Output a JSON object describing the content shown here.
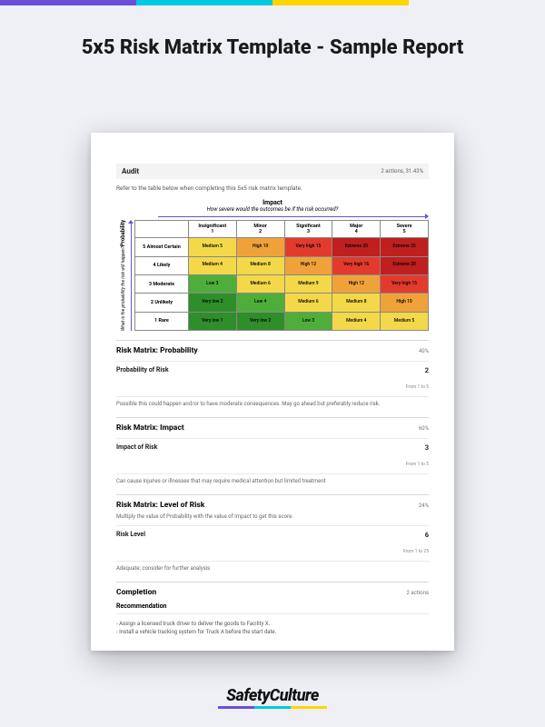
{
  "topbar_colors": [
    "#6b4fd8",
    "#00c9e0",
    "#ffd500",
    "#ffffff00"
  ],
  "title": "5x5 Risk Matrix Template - Sample Report",
  "audit": {
    "label": "Audit",
    "meta": "2 actions, 31.43%"
  },
  "instruction": "Refer to the table below when completing this 5x5 risk matrix template.",
  "impact_header": {
    "title": "Impact",
    "subtitle": "How severe would the outcomes be if the risk occurred?"
  },
  "probability_header": {
    "title": "Probability",
    "subtitle": "What is the probability the risk will happen?"
  },
  "matrix": {
    "columns": [
      {
        "label": "Insignificant",
        "n": "1"
      },
      {
        "label": "Minor",
        "n": "2"
      },
      {
        "label": "Significant",
        "n": "3"
      },
      {
        "label": "Major",
        "n": "4"
      },
      {
        "label": "Severe",
        "n": "5"
      }
    ],
    "rows": [
      {
        "label": "5 Almost Certain",
        "cells": [
          "Medium 5",
          "High 10",
          "Very high 15",
          "Extreme 20",
          "Extreme 25"
        ]
      },
      {
        "label": "4 Likely",
        "cells": [
          "Medium 4",
          "Medium 8",
          "High 12",
          "Very high 16",
          "Extreme 20"
        ]
      },
      {
        "label": "3 Moderate",
        "cells": [
          "Low 3",
          "Medium 6",
          "Medium 9",
          "High 12",
          "Very high 15"
        ]
      },
      {
        "label": "2 Unlikely",
        "cells": [
          "Very low 2",
          "Low 4",
          "Medium 6",
          "Medium 8",
          "High 10"
        ]
      },
      {
        "label": "1 Rare",
        "cells": [
          "Very low 1",
          "Very low 2",
          "Low 3",
          "Medium 4",
          "Medium 5"
        ]
      }
    ],
    "cell_colors": [
      [
        "#f3d84a",
        "#f0a23a",
        "#e23b2e",
        "#c01f1f",
        "#c01f1f"
      ],
      [
        "#f3d84a",
        "#f3d84a",
        "#f0a23a",
        "#e23b2e",
        "#c01f1f"
      ],
      [
        "#4fae3a",
        "#f3d84a",
        "#f3d84a",
        "#f0a23a",
        "#e23b2e"
      ],
      [
        "#2e8f2a",
        "#4fae3a",
        "#f3d84a",
        "#f3d84a",
        "#f0a23a"
      ],
      [
        "#2e8f2a",
        "#2e8f2a",
        "#4fae3a",
        "#f3d84a",
        "#f3d84a"
      ]
    ]
  },
  "sections": {
    "probability": {
      "heading": "Risk Matrix: Probability",
      "meta": "40%",
      "field_label": "Probability of Risk",
      "value": "2",
      "range": "From 1 to 5",
      "desc": "Possible this could happen and/or to have moderate consequences. May go ahead but preferably reduce risk."
    },
    "impact": {
      "heading": "Risk Matrix: Impact",
      "meta": "60%",
      "field_label": "Impact of Risk",
      "value": "3",
      "range": "From 1 to 5",
      "desc": "Can cause injuries or illnesses that may require medical attention but limited treatment"
    },
    "level": {
      "heading": "Risk Matrix: Level of Risk",
      "meta": "24%",
      "note": "Multiply the value of Probability with the value of Impact to get this score.",
      "field_label": "Risk Level",
      "value": "6",
      "range": "From 1 to 25",
      "desc": "Adequate; consider for further analysis"
    },
    "completion": {
      "heading": "Completion",
      "meta": "2 actions",
      "rec_label": "Recommendation",
      "rec_body": "- Assign a licensed truck driver to deliver the goods to Facility X.\n- Install a vehicle tracking system for Truck A before the start date."
    }
  },
  "brand": {
    "name": "SafetyCulture",
    "underline_colors": [
      "#6b4fd8",
      "#00c9e0",
      "#ffd500"
    ]
  }
}
